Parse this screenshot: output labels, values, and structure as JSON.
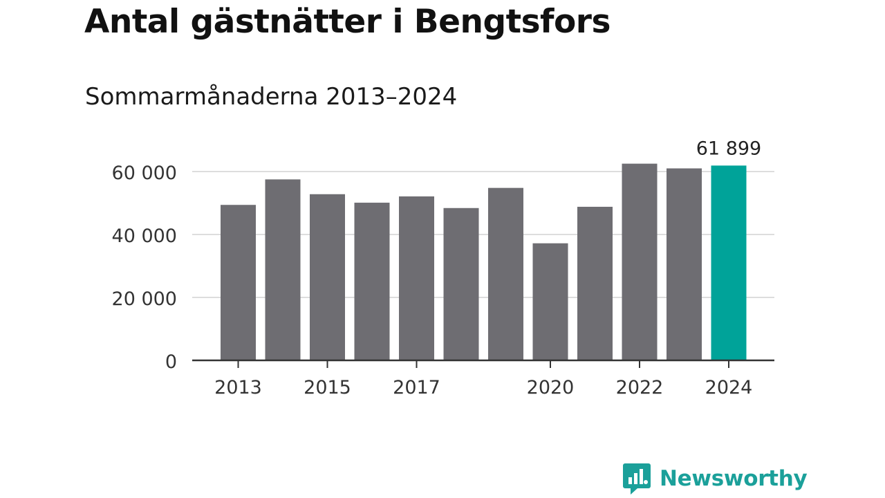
{
  "chart_data": {
    "type": "bar",
    "title": "Antal gästnätter i Bengtsfors",
    "subtitle": "Sommarmånaderna 2013–2024",
    "categories": [
      "2013",
      "2014",
      "2015",
      "2016",
      "2017",
      "2018",
      "2019",
      "2020",
      "2021",
      "2022",
      "2023",
      "2024"
    ],
    "x_tick_labels": [
      "2013",
      "",
      "2015",
      "",
      "2017",
      "",
      "",
      "2020",
      "",
      "2022",
      "",
      "2024"
    ],
    "values": [
      49400,
      57500,
      52800,
      50100,
      52100,
      48400,
      54800,
      37200,
      48800,
      62500,
      61000,
      61899
    ],
    "ylim": [
      0,
      60000
    ],
    "yticks": [
      0,
      20000,
      40000,
      60000
    ],
    "ytick_labels": [
      "0",
      "20 000",
      "40 000",
      "60 000"
    ],
    "annotations": [
      {
        "category": "2024",
        "text": "61 899"
      }
    ],
    "grid": true,
    "colors": {
      "bar": "#6e6d72",
      "highlight": "#00a399",
      "grid": "#dddddd",
      "axis": "#333333"
    }
  },
  "brand": {
    "name": "Newsworthy",
    "icon": "newsworthy-logo-icon",
    "color": "#1ba09a"
  }
}
